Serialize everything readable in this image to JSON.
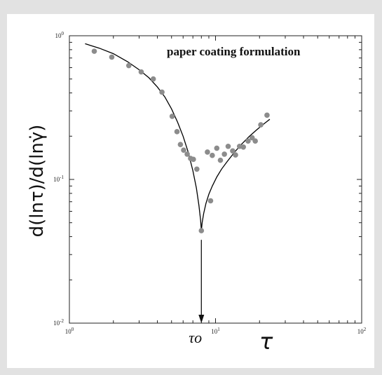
{
  "chart_data": {
    "type": "scatter",
    "title": "paper coating formulation",
    "xlabel": "τ",
    "ylabel": "d(lnτ)/d(lnγ̇)",
    "xscale": "log",
    "yscale": "log",
    "xlim": [
      1,
      100
    ],
    "ylim": [
      0.01,
      1
    ],
    "x_ticks": [
      {
        "value": 1,
        "base": "10",
        "exp": "0"
      },
      {
        "value": 10,
        "base": "10",
        "exp": "1"
      },
      {
        "value": 100,
        "base": "10",
        "exp": "2"
      }
    ],
    "y_ticks": [
      {
        "value": 0.01,
        "base": "10",
        "exp": "-2"
      },
      {
        "value": 0.1,
        "base": "10",
        "exp": "-1"
      },
      {
        "value": 1,
        "base": "10",
        "exp": "0"
      }
    ],
    "grid": false,
    "series": [
      {
        "kind": "points",
        "color": "#8c8c8c",
        "points": [
          [
            1.48,
            0.78
          ],
          [
            1.95,
            0.71
          ],
          [
            2.55,
            0.62
          ],
          [
            3.1,
            0.56
          ],
          [
            3.75,
            0.5
          ],
          [
            4.3,
            0.405
          ],
          [
            5.05,
            0.275
          ],
          [
            5.45,
            0.215
          ],
          [
            5.75,
            0.175
          ],
          [
            6.05,
            0.16
          ],
          [
            6.4,
            0.15
          ],
          [
            6.75,
            0.14
          ],
          [
            7.05,
            0.138
          ],
          [
            7.45,
            0.118
          ],
          [
            8.0,
            0.044
          ],
          [
            8.8,
            0.155
          ],
          [
            9.25,
            0.071
          ],
          [
            9.5,
            0.147
          ],
          [
            10.2,
            0.165
          ],
          [
            10.8,
            0.136
          ],
          [
            11.5,
            0.15
          ],
          [
            12.2,
            0.17
          ],
          [
            13.1,
            0.158
          ],
          [
            13.7,
            0.148
          ],
          [
            14.6,
            0.17
          ],
          [
            15.5,
            0.168
          ],
          [
            16.7,
            0.185
          ],
          [
            17.8,
            0.195
          ],
          [
            18.7,
            0.185
          ],
          [
            20.4,
            0.24
          ],
          [
            22.5,
            0.28
          ]
        ]
      },
      {
        "kind": "line",
        "color": "#000000",
        "points": [
          [
            1.28,
            0.88
          ],
          [
            1.6,
            0.82
          ],
          [
            2.0,
            0.75
          ],
          [
            2.5,
            0.66
          ],
          [
            3.0,
            0.58
          ],
          [
            3.5,
            0.51
          ],
          [
            4.0,
            0.44
          ],
          [
            4.5,
            0.375
          ],
          [
            5.0,
            0.31
          ],
          [
            5.5,
            0.25
          ],
          [
            6.0,
            0.2
          ],
          [
            6.5,
            0.155
          ],
          [
            7.0,
            0.115
          ],
          [
            7.4,
            0.087
          ],
          [
            7.7,
            0.066
          ],
          [
            7.9,
            0.052
          ],
          [
            8.0,
            0.044
          ]
        ]
      },
      {
        "kind": "line",
        "color": "#000000",
        "points": [
          [
            8.0,
            0.044
          ],
          [
            8.1,
            0.05
          ],
          [
            8.3,
            0.058
          ],
          [
            8.6,
            0.068
          ],
          [
            9.0,
            0.079
          ],
          [
            9.5,
            0.09
          ],
          [
            10.2,
            0.104
          ],
          [
            11.0,
            0.118
          ],
          [
            12.0,
            0.133
          ],
          [
            13.5,
            0.155
          ],
          [
            15.0,
            0.175
          ],
          [
            17.0,
            0.199
          ],
          [
            19.0,
            0.22
          ],
          [
            21.0,
            0.24
          ],
          [
            23.5,
            0.262
          ]
        ]
      }
    ],
    "annotations": [
      {
        "text": "τo",
        "x": 8.0,
        "type": "arrow-down-to-axis",
        "from_y": 0.038
      }
    ]
  }
}
